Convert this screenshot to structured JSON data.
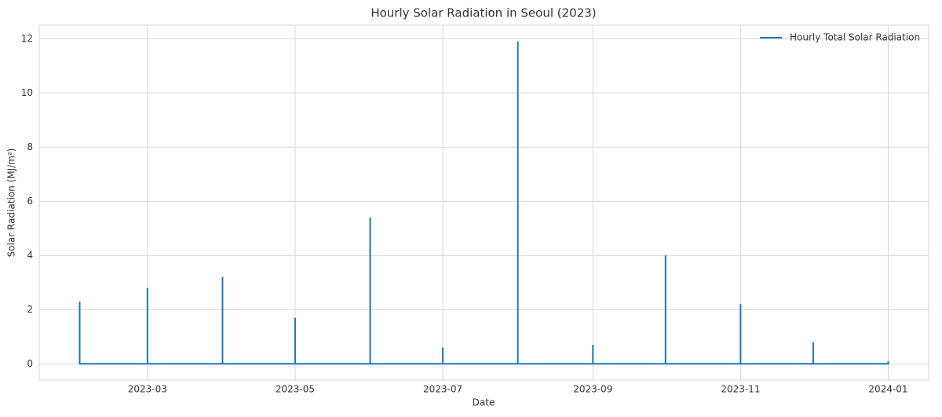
{
  "chart_data": {
    "type": "line",
    "title": "Hourly Solar Radiation in Seoul (2023)",
    "x_label": "Date",
    "y_label": "Solar Radiation (MJ/m²)",
    "x": [
      "2023-02",
      "2023-02",
      "2023-03",
      "2023-03",
      "2023-03",
      "2023-04",
      "2023-04",
      "2023-04",
      "2023-05",
      "2023-05",
      "2023-05",
      "2023-06",
      "2023-06",
      "2023-06",
      "2023-07",
      "2023-07",
      "2023-07",
      "2023-08",
      "2023-08",
      "2023-08",
      "2023-09",
      "2023-09",
      "2023-09",
      "2023-10",
      "2023-10",
      "2023-10",
      "2023-11",
      "2023-11",
      "2023-11",
      "2023-12",
      "2023-12",
      "2023-12",
      "2024-01",
      "2024-01"
    ],
    "series": [
      {
        "name": "Hourly Total Solar Radiation",
        "color": "#1f77b4",
        "values": [
          2.3,
          0,
          0,
          2.8,
          0,
          0,
          3.2,
          0,
          0,
          1.7,
          0,
          0,
          5.4,
          0,
          0,
          0.6,
          0,
          0,
          11.9,
          0,
          0,
          0.7,
          0,
          0,
          4.0,
          0,
          0,
          2.2,
          0,
          0,
          0.8,
          0,
          0,
          0.1
        ]
      }
    ],
    "xticks": [
      "2023-03",
      "2023-05",
      "2023-07",
      "2023-09",
      "2023-11",
      "2024-01"
    ],
    "ylim": [
      -0.6,
      12.5
    ],
    "yticks": [
      0,
      2,
      4,
      6,
      8,
      10,
      12
    ],
    "grid": true,
    "legend": "upper right"
  }
}
